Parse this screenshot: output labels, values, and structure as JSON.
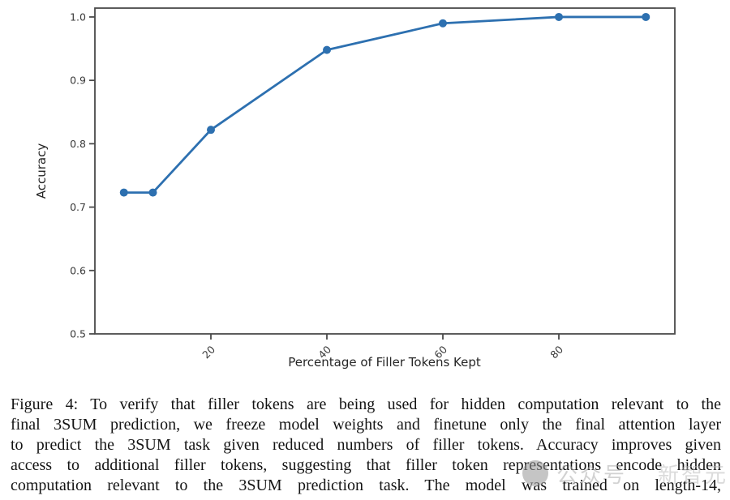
{
  "figure": {
    "caption_lines": [
      "Figure 4: To verify that filler tokens are being used for hidden computation relevant to the",
      "final 3SUM prediction, we freeze model weights and finetune only the final attention layer",
      "to predict the 3SUM task given reduced numbers of filler tokens. Accuracy improves given",
      "access to additional filler tokens, suggesting that filler token representations encode hidden",
      "computation relevant to the 3SUM prediction task. The model was trained on length-14,"
    ]
  },
  "chart_data": {
    "type": "line",
    "title": "",
    "xlabel": "Percentage of Filler Tokens Kept",
    "ylabel": "Accuracy",
    "x": [
      5,
      10,
      20,
      40,
      60,
      80,
      95
    ],
    "y": [
      0.723,
      0.723,
      0.822,
      0.948,
      0.99,
      1.0,
      1.0
    ],
    "xlim": [
      0,
      100
    ],
    "ylim": [
      0.5,
      1.014
    ],
    "xtick_values": [
      20,
      40,
      60,
      80
    ],
    "xtick_labels": [
      "20",
      "40",
      "60",
      "80"
    ],
    "ytick_values": [
      0.5,
      0.6,
      0.7,
      0.8,
      0.9,
      1.0
    ],
    "ytick_labels": [
      "0.5",
      "0.6",
      "0.7",
      "0.8",
      "0.9",
      "1.0"
    ],
    "grid": false,
    "legend": "none",
    "marker": "circle",
    "xtick_rotation_deg": 45
  },
  "watermark": {
    "icon": "logo-circle-icon",
    "label_1": "公众号",
    "label_2": "新智元"
  },
  "colors": {
    "line": "#2d70b0",
    "axis": "#4a4a4a",
    "tick_label": "#3a3a3a",
    "background": "#ffffff"
  }
}
